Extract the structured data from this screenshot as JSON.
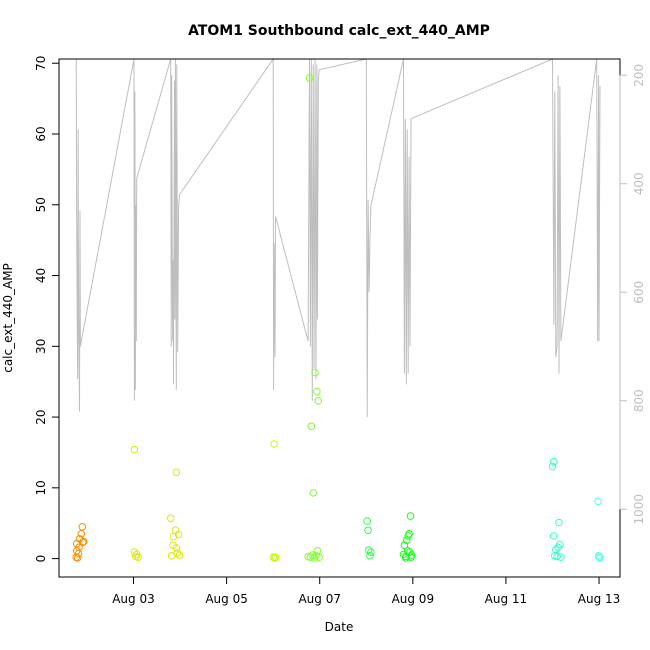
{
  "chart_data": {
    "type": "scatter",
    "title": "ATOM1 Southbound calc_ext_440_AMP",
    "xlabel": "Date",
    "ylabel": "calc_ext_440_AMP",
    "x_ticks": [
      "Aug 03",
      "Aug 05",
      "Aug 07",
      "Aug 09",
      "Aug 11",
      "Aug 13"
    ],
    "y_ticks": [
      "0",
      "10",
      "20",
      "30",
      "40",
      "50",
      "60",
      "70"
    ],
    "y2_ticks": [
      "200",
      "400",
      "600",
      "800",
      "1000"
    ],
    "xlim": [
      1.4,
      13.45
    ],
    "ylim": [
      -2.6,
      70.6
    ],
    "y2lim": [
      1125,
      170
    ],
    "y2_reversed": true,
    "point_colors": [
      "#ff8c00",
      "#e0e800",
      "#bfff00",
      "#80ff30",
      "#2eff4a",
      "#15ff15",
      "#30ffc8",
      "#55ffe8"
    ],
    "points": [
      {
        "x": 1.77,
        "y": 0.2,
        "c": 0
      },
      {
        "x": 1.78,
        "y": 1.1,
        "c": 0
      },
      {
        "x": 1.78,
        "y": 2.1,
        "c": 0
      },
      {
        "x": 1.8,
        "y": 0.1,
        "c": 0
      },
      {
        "x": 1.82,
        "y": 0.7,
        "c": 0
      },
      {
        "x": 1.83,
        "y": 1.6,
        "c": 0
      },
      {
        "x": 1.84,
        "y": 2.8,
        "c": 0
      },
      {
        "x": 1.88,
        "y": 3.5,
        "c": 0
      },
      {
        "x": 1.9,
        "y": 4.5,
        "c": 0
      },
      {
        "x": 1.91,
        "y": 2.3,
        "c": 0
      },
      {
        "x": 1.93,
        "y": 2.4,
        "c": 0
      },
      {
        "x": 3.02,
        "y": 15.4,
        "c": 1
      },
      {
        "x": 3.02,
        "y": 0.9,
        "c": 1
      },
      {
        "x": 3.05,
        "y": 0.3,
        "c": 1
      },
      {
        "x": 3.07,
        "y": 0.6,
        "c": 1
      },
      {
        "x": 3.1,
        "y": 0.2,
        "c": 1
      },
      {
        "x": 3.8,
        "y": 5.7,
        "c": 1
      },
      {
        "x": 3.82,
        "y": 0.4,
        "c": 1
      },
      {
        "x": 3.85,
        "y": 1.9,
        "c": 1
      },
      {
        "x": 3.86,
        "y": 3.1,
        "c": 1
      },
      {
        "x": 3.9,
        "y": 4.0,
        "c": 1
      },
      {
        "x": 3.92,
        "y": 12.2,
        "c": 1
      },
      {
        "x": 3.92,
        "y": 1.5,
        "c": 1
      },
      {
        "x": 3.94,
        "y": 0.8,
        "c": 1
      },
      {
        "x": 3.97,
        "y": 3.4,
        "c": 1
      },
      {
        "x": 3.99,
        "y": 0.5,
        "c": 1
      },
      {
        "x": 6.0,
        "y": 0.2,
        "c": 2
      },
      {
        "x": 6.02,
        "y": 16.2,
        "c": 2
      },
      {
        "x": 6.03,
        "y": 0.1,
        "c": 2
      },
      {
        "x": 6.05,
        "y": 0.2,
        "c": 2
      },
      {
        "x": 6.78,
        "y": 67.9,
        "c": 3
      },
      {
        "x": 6.8,
        "y": 0.2,
        "c": 3
      },
      {
        "x": 6.82,
        "y": 18.7,
        "c": 3
      },
      {
        "x": 6.84,
        "y": 0.5,
        "c": 3
      },
      {
        "x": 6.86,
        "y": 9.3,
        "c": 3
      },
      {
        "x": 6.88,
        "y": 0.1,
        "c": 3
      },
      {
        "x": 6.9,
        "y": 26.3,
        "c": 3
      },
      {
        "x": 6.92,
        "y": 0.4,
        "c": 3
      },
      {
        "x": 6.94,
        "y": 23.6,
        "c": 3
      },
      {
        "x": 6.95,
        "y": 1.1,
        "c": 3
      },
      {
        "x": 6.97,
        "y": 22.3,
        "c": 3
      },
      {
        "x": 6.99,
        "y": 0.2,
        "c": 3
      },
      {
        "x": 6.75,
        "y": 0.3,
        "c": 3
      },
      {
        "x": 8.02,
        "y": 5.3,
        "c": 4
      },
      {
        "x": 8.04,
        "y": 4.0,
        "c": 4
      },
      {
        "x": 8.05,
        "y": 1.2,
        "c": 4
      },
      {
        "x": 8.08,
        "y": 0.4,
        "c": 4
      },
      {
        "x": 8.1,
        "y": 0.9,
        "c": 4
      },
      {
        "x": 8.8,
        "y": 0.6,
        "c": 5
      },
      {
        "x": 8.82,
        "y": 1.9,
        "c": 5
      },
      {
        "x": 8.85,
        "y": 0.3,
        "c": 5
      },
      {
        "x": 8.87,
        "y": 2.6,
        "c": 5
      },
      {
        "x": 8.89,
        "y": 1.1,
        "c": 5
      },
      {
        "x": 8.9,
        "y": 3.2,
        "c": 5
      },
      {
        "x": 8.92,
        "y": 3.5,
        "c": 5
      },
      {
        "x": 8.93,
        "y": 0.9,
        "c": 5
      },
      {
        "x": 8.95,
        "y": 6.0,
        "c": 5
      },
      {
        "x": 8.96,
        "y": 0.2,
        "c": 5
      },
      {
        "x": 8.97,
        "y": 0.5,
        "c": 5
      },
      {
        "x": 8.85,
        "y": 0.1,
        "c": 5
      },
      {
        "x": 12.0,
        "y": 13.0,
        "c": 6
      },
      {
        "x": 12.03,
        "y": 13.7,
        "c": 6
      },
      {
        "x": 12.02,
        "y": 3.2,
        "c": 6
      },
      {
        "x": 12.05,
        "y": 0.4,
        "c": 6
      },
      {
        "x": 12.07,
        "y": 1.3,
        "c": 6
      },
      {
        "x": 12.1,
        "y": 0.3,
        "c": 6
      },
      {
        "x": 12.12,
        "y": 1.6,
        "c": 6
      },
      {
        "x": 12.14,
        "y": 5.1,
        "c": 6
      },
      {
        "x": 12.16,
        "y": 2.0,
        "c": 6
      },
      {
        "x": 12.18,
        "y": 0.2,
        "c": 6
      },
      {
        "x": 12.98,
        "y": 8.1,
        "c": 7
      },
      {
        "x": 12.99,
        "y": 0.4,
        "c": 7
      },
      {
        "x": 13.0,
        "y": 0.2,
        "c": 7
      },
      {
        "x": 13.02,
        "y": 0.1,
        "c": 7
      }
    ],
    "secondary_series": {
      "name": "",
      "color": "#bebebe",
      "x": [
        1.77,
        1.78,
        1.8,
        1.81,
        1.82,
        1.84,
        1.85,
        1.86,
        1.88,
        3.01,
        3.02,
        3.03,
        3.04,
        3.05,
        3.06,
        3.07,
        3.8,
        3.81,
        3.82,
        3.84,
        3.85,
        3.86,
        3.88,
        3.89,
        3.9,
        3.92,
        3.93,
        3.95,
        3.97,
        3.99,
        6.0,
        6.01,
        6.02,
        6.03,
        6.04,
        6.05,
        6.75,
        6.78,
        6.8,
        6.82,
        6.84,
        6.86,
        6.88,
        6.9,
        6.92,
        6.94,
        6.95,
        6.97,
        6.99,
        8.0,
        8.02,
        8.04,
        8.06,
        8.08,
        8.1,
        8.8,
        8.82,
        8.84,
        8.86,
        8.88,
        8.9,
        8.92,
        8.94,
        8.96,
        12.0,
        12.03,
        12.05,
        12.07,
        12.1,
        12.12,
        12.14,
        12.16,
        12.18,
        12.95,
        12.97,
        12.99,
        13.0,
        13.02
      ],
      "y": [
        170,
        480,
        760,
        300,
        650,
        820,
        450,
        700,
        690,
        170,
        800,
        230,
        780,
        440,
        690,
        390,
        170,
        700,
        200,
        690,
        540,
        770,
        210,
        650,
        170,
        780,
        180,
        710,
        440,
        420,
        170,
        780,
        510,
        620,
        720,
        460,
        690,
        170,
        700,
        170,
        800,
        180,
        740,
        170,
        760,
        180,
        650,
        210,
        190,
        170,
        830,
        430,
        600,
        500,
        440,
        170,
        750,
        280,
        770,
        300,
        750,
        350,
        700,
        280,
        170,
        660,
        230,
        720,
        700,
        200,
        750,
        220,
        690,
        170,
        690,
        200,
        690,
        220
      ]
    }
  }
}
